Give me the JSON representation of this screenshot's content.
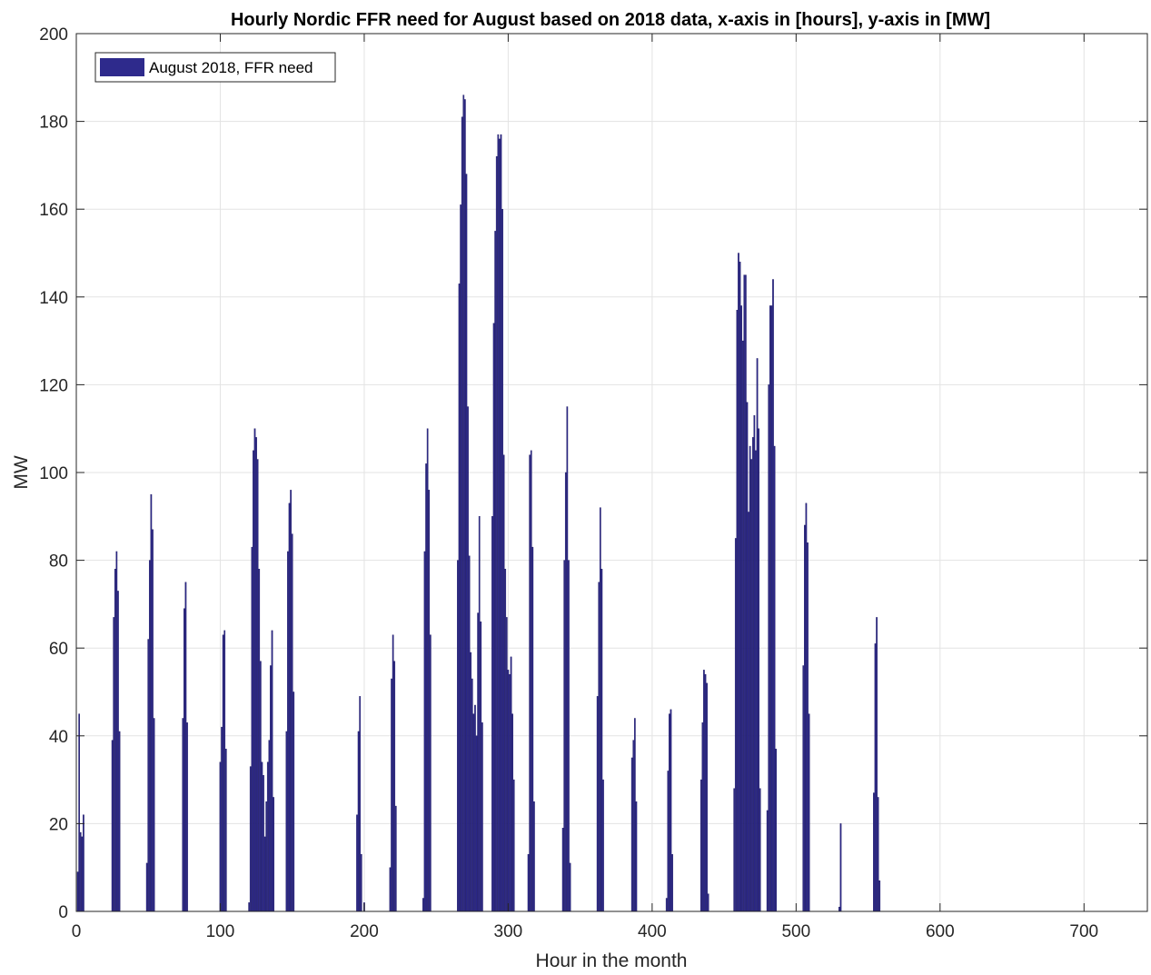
{
  "chart_data": {
    "type": "bar",
    "title": "Hourly Nordic FFR need for August based on 2018 data, x-axis in [hours], y-axis in [MW]",
    "xlabel": "Hour in the month",
    "ylabel": "MW",
    "xlim": [
      0,
      744
    ],
    "ylim": [
      0,
      200
    ],
    "xticks": [
      0,
      100,
      200,
      300,
      400,
      500,
      600,
      700
    ],
    "yticks": [
      0,
      20,
      40,
      60,
      80,
      100,
      120,
      140,
      160,
      180,
      200
    ],
    "grid": true,
    "legend_position": "top-left",
    "bar_color": "#2e2a8c",
    "series": [
      {
        "name": "August 2018, FFR need",
        "points": [
          [
            1,
            9
          ],
          [
            2,
            45
          ],
          [
            3,
            18
          ],
          [
            4,
            17
          ],
          [
            5,
            22
          ],
          [
            25,
            39
          ],
          [
            26,
            67
          ],
          [
            27,
            78
          ],
          [
            28,
            82
          ],
          [
            29,
            73
          ],
          [
            30,
            41
          ],
          [
            49,
            11
          ],
          [
            50,
            62
          ],
          [
            51,
            80
          ],
          [
            52,
            95
          ],
          [
            53,
            87
          ],
          [
            54,
            44
          ],
          [
            74,
            44
          ],
          [
            75,
            69
          ],
          [
            76,
            75
          ],
          [
            77,
            43
          ],
          [
            100,
            34
          ],
          [
            101,
            42
          ],
          [
            102,
            63
          ],
          [
            103,
            64
          ],
          [
            104,
            37
          ],
          [
            120,
            2
          ],
          [
            121,
            33
          ],
          [
            122,
            83
          ],
          [
            123,
            105
          ],
          [
            124,
            110
          ],
          [
            125,
            108
          ],
          [
            126,
            103
          ],
          [
            127,
            78
          ],
          [
            128,
            57
          ],
          [
            129,
            34
          ],
          [
            130,
            31
          ],
          [
            131,
            17
          ],
          [
            132,
            25
          ],
          [
            133,
            34
          ],
          [
            134,
            39
          ],
          [
            135,
            56
          ],
          [
            136,
            64
          ],
          [
            137,
            26
          ],
          [
            146,
            41
          ],
          [
            147,
            82
          ],
          [
            148,
            93
          ],
          [
            149,
            96
          ],
          [
            150,
            86
          ],
          [
            151,
            50
          ],
          [
            195,
            22
          ],
          [
            196,
            41
          ],
          [
            197,
            49
          ],
          [
            198,
            13
          ],
          [
            200,
            2
          ],
          [
            218,
            10
          ],
          [
            219,
            53
          ],
          [
            220,
            63
          ],
          [
            221,
            57
          ],
          [
            222,
            24
          ],
          [
            241,
            3
          ],
          [
            242,
            82
          ],
          [
            243,
            102
          ],
          [
            244,
            110
          ],
          [
            245,
            96
          ],
          [
            246,
            63
          ],
          [
            265,
            80
          ],
          [
            266,
            143
          ],
          [
            267,
            161
          ],
          [
            268,
            181
          ],
          [
            269,
            186
          ],
          [
            270,
            185
          ],
          [
            271,
            168
          ],
          [
            272,
            115
          ],
          [
            273,
            81
          ],
          [
            274,
            59
          ],
          [
            275,
            53
          ],
          [
            276,
            45
          ],
          [
            277,
            47
          ],
          [
            278,
            40
          ],
          [
            279,
            68
          ],
          [
            280,
            90
          ],
          [
            281,
            66
          ],
          [
            282,
            43
          ],
          [
            289,
            90
          ],
          [
            290,
            134
          ],
          [
            291,
            155
          ],
          [
            292,
            172
          ],
          [
            293,
            177
          ],
          [
            294,
            176
          ],
          [
            295,
            177
          ],
          [
            296,
            160
          ],
          [
            297,
            104
          ],
          [
            298,
            78
          ],
          [
            299,
            67
          ],
          [
            300,
            55
          ],
          [
            301,
            54
          ],
          [
            302,
            58
          ],
          [
            303,
            45
          ],
          [
            304,
            30
          ],
          [
            314,
            13
          ],
          [
            315,
            104
          ],
          [
            316,
            105
          ],
          [
            317,
            83
          ],
          [
            318,
            25
          ],
          [
            338,
            19
          ],
          [
            339,
            80
          ],
          [
            340,
            100
          ],
          [
            341,
            115
          ],
          [
            342,
            80
          ],
          [
            343,
            11
          ],
          [
            362,
            49
          ],
          [
            363,
            75
          ],
          [
            364,
            92
          ],
          [
            365,
            78
          ],
          [
            366,
            30
          ],
          [
            386,
            35
          ],
          [
            387,
            39
          ],
          [
            388,
            44
          ],
          [
            389,
            25
          ],
          [
            410,
            3
          ],
          [
            411,
            32
          ],
          [
            412,
            45
          ],
          [
            413,
            46
          ],
          [
            414,
            13
          ],
          [
            434,
            30
          ],
          [
            435,
            43
          ],
          [
            436,
            55
          ],
          [
            437,
            54
          ],
          [
            438,
            52
          ],
          [
            439,
            4
          ],
          [
            457,
            28
          ],
          [
            458,
            85
          ],
          [
            459,
            137
          ],
          [
            460,
            150
          ],
          [
            461,
            148
          ],
          [
            462,
            138
          ],
          [
            463,
            130
          ],
          [
            464,
            145
          ],
          [
            465,
            145
          ],
          [
            466,
            116
          ],
          [
            467,
            91
          ],
          [
            468,
            106
          ],
          [
            469,
            103
          ],
          [
            470,
            108
          ],
          [
            471,
            113
          ],
          [
            472,
            105
          ],
          [
            473,
            126
          ],
          [
            474,
            110
          ],
          [
            475,
            28
          ],
          [
            480,
            23
          ],
          [
            481,
            120
          ],
          [
            482,
            138
          ],
          [
            483,
            138
          ],
          [
            484,
            144
          ],
          [
            485,
            106
          ],
          [
            486,
            37
          ],
          [
            505,
            56
          ],
          [
            506,
            88
          ],
          [
            507,
            93
          ],
          [
            508,
            84
          ],
          [
            509,
            45
          ],
          [
            530,
            1
          ],
          [
            531,
            20
          ],
          [
            554,
            27
          ],
          [
            555,
            61
          ],
          [
            556,
            67
          ],
          [
            557,
            26
          ],
          [
            558,
            7
          ]
        ]
      }
    ]
  }
}
